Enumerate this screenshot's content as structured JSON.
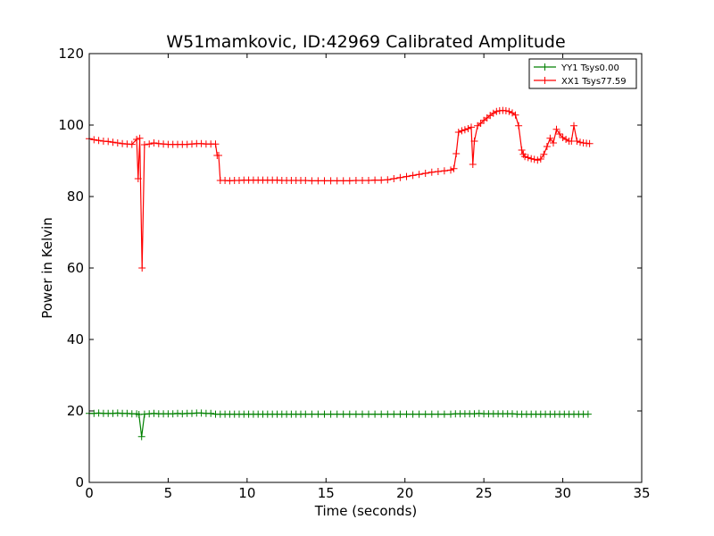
{
  "chart_data": {
    "type": "line",
    "title": "W51mamkovic, ID:42969 Calibrated Amplitude",
    "xlabel": "Time (seconds)",
    "ylabel": "Power in Kelvin",
    "xlim": [
      0,
      35
    ],
    "ylim": [
      0,
      120
    ],
    "xticks": [
      0,
      5,
      10,
      15,
      20,
      25,
      30,
      35
    ],
    "yticks": [
      0,
      20,
      40,
      60,
      80,
      100,
      120
    ],
    "grid": false,
    "legend_position": "top-right",
    "series": [
      {
        "name": "YY1 Tsys0.00",
        "color": "#008000",
        "marker": "+",
        "x": [
          0.0,
          0.3,
          0.6,
          0.9,
          1.2,
          1.5,
          1.8,
          2.1,
          2.4,
          2.7,
          3.0,
          3.15,
          3.32,
          3.5,
          3.8,
          4.1,
          4.4,
          4.7,
          5.0,
          5.3,
          5.6,
          5.9,
          6.2,
          6.5,
          6.8,
          7.1,
          7.4,
          7.7,
          8.0,
          8.3,
          8.6,
          8.9,
          9.2,
          9.5,
          9.8,
          10.1,
          10.4,
          10.7,
          11.0,
          11.3,
          11.6,
          11.9,
          12.2,
          12.5,
          12.8,
          13.1,
          13.4,
          13.7,
          14.1,
          14.5,
          14.9,
          15.3,
          15.7,
          16.1,
          16.5,
          16.9,
          17.3,
          17.7,
          18.1,
          18.5,
          18.9,
          19.3,
          19.7,
          20.1,
          20.5,
          20.9,
          21.3,
          21.7,
          22.1,
          22.5,
          22.9,
          23.2,
          23.5,
          23.8,
          24.1,
          24.4,
          24.7,
          25.0,
          25.3,
          25.6,
          25.9,
          26.2,
          26.5,
          26.8,
          27.1,
          27.4,
          27.7,
          28.0,
          28.3,
          28.6,
          28.9,
          29.2,
          29.5,
          29.8,
          30.1,
          30.4,
          30.7,
          31.0,
          31.3,
          31.6
        ],
        "y": [
          19.3,
          19.3,
          19.4,
          19.3,
          19.3,
          19.3,
          19.4,
          19.3,
          19.3,
          19.2,
          19.2,
          19.0,
          12.8,
          19.1,
          19.2,
          19.3,
          19.2,
          19.2,
          19.2,
          19.2,
          19.3,
          19.2,
          19.3,
          19.3,
          19.4,
          19.4,
          19.3,
          19.3,
          19.1,
          19.1,
          19.1,
          19.1,
          19.1,
          19.1,
          19.1,
          19.1,
          19.1,
          19.1,
          19.1,
          19.1,
          19.1,
          19.1,
          19.1,
          19.1,
          19.1,
          19.1,
          19.1,
          19.1,
          19.1,
          19.1,
          19.1,
          19.1,
          19.1,
          19.1,
          19.1,
          19.1,
          19.1,
          19.1,
          19.1,
          19.1,
          19.1,
          19.1,
          19.1,
          19.1,
          19.1,
          19.1,
          19.1,
          19.1,
          19.1,
          19.1,
          19.1,
          19.2,
          19.2,
          19.2,
          19.2,
          19.2,
          19.3,
          19.2,
          19.2,
          19.2,
          19.2,
          19.2,
          19.2,
          19.2,
          19.1,
          19.1,
          19.1,
          19.1,
          19.1,
          19.1,
          19.1,
          19.1,
          19.1,
          19.1,
          19.1,
          19.1,
          19.1,
          19.1,
          19.1,
          19.1
        ]
      },
      {
        "name": "XX1 Tsys77.59",
        "color": "#ff0000",
        "marker": "+",
        "x": [
          0.0,
          0.3,
          0.6,
          0.9,
          1.2,
          1.5,
          1.8,
          2.1,
          2.4,
          2.7,
          3.0,
          3.1,
          3.2,
          3.35,
          3.5,
          3.8,
          4.1,
          4.4,
          4.7,
          5.0,
          5.3,
          5.6,
          5.9,
          6.2,
          6.5,
          6.8,
          7.1,
          7.4,
          7.7,
          8.0,
          8.1,
          8.2,
          8.3,
          8.6,
          8.9,
          9.2,
          9.5,
          9.8,
          10.1,
          10.4,
          10.7,
          11.0,
          11.3,
          11.6,
          11.9,
          12.2,
          12.5,
          12.8,
          13.1,
          13.4,
          13.7,
          14.1,
          14.5,
          14.9,
          15.3,
          15.7,
          16.1,
          16.5,
          16.9,
          17.3,
          17.7,
          18.1,
          18.5,
          18.9,
          19.3,
          19.7,
          20.1,
          20.5,
          20.9,
          21.3,
          21.7,
          22.1,
          22.5,
          22.9,
          23.1,
          23.25,
          23.4,
          23.6,
          23.8,
          24.0,
          24.2,
          24.3,
          24.4,
          24.6,
          24.8,
          25.0,
          25.2,
          25.4,
          25.6,
          25.8,
          26.0,
          26.2,
          26.4,
          26.6,
          26.8,
          27.0,
          27.2,
          27.4,
          27.5,
          27.6,
          27.8,
          28.0,
          28.2,
          28.4,
          28.6,
          28.8,
          29.0,
          29.2,
          29.4,
          29.6,
          29.8,
          30.0,
          30.2,
          30.4,
          30.55,
          30.7,
          30.9,
          31.1,
          31.3,
          31.5,
          31.7
        ],
        "y": [
          96.2,
          95.9,
          95.7,
          95.5,
          95.4,
          95.2,
          95.0,
          94.8,
          94.7,
          94.6,
          96.0,
          85.0,
          96.3,
          60.0,
          94.5,
          94.7,
          95.0,
          94.8,
          94.7,
          94.6,
          94.6,
          94.6,
          94.6,
          94.6,
          94.7,
          94.8,
          94.8,
          94.7,
          94.7,
          94.7,
          91.5,
          91.5,
          84.5,
          84.5,
          84.4,
          84.5,
          84.5,
          84.6,
          84.6,
          84.6,
          84.6,
          84.6,
          84.6,
          84.6,
          84.6,
          84.5,
          84.5,
          84.5,
          84.5,
          84.5,
          84.5,
          84.4,
          84.4,
          84.4,
          84.4,
          84.4,
          84.4,
          84.4,
          84.5,
          84.5,
          84.5,
          84.6,
          84.6,
          84.7,
          85.0,
          85.3,
          85.6,
          85.9,
          86.2,
          86.5,
          86.8,
          87.0,
          87.2,
          87.4,
          87.8,
          92.0,
          98.0,
          98.4,
          98.7,
          99.0,
          99.4,
          89.0,
          95.5,
          99.8,
          100.5,
          101.3,
          102.0,
          102.7,
          103.3,
          103.8,
          104.0,
          104.1,
          104.0,
          103.8,
          103.4,
          102.8,
          99.8,
          93.0,
          91.8,
          91.2,
          90.9,
          90.6,
          90.4,
          90.2,
          90.5,
          91.8,
          94.0,
          96.3,
          95.0,
          98.8,
          97.5,
          96.5,
          96.0,
          95.5,
          95.5,
          99.8,
          95.5,
          95.2,
          95.0,
          94.9,
          94.8
        ]
      }
    ]
  }
}
